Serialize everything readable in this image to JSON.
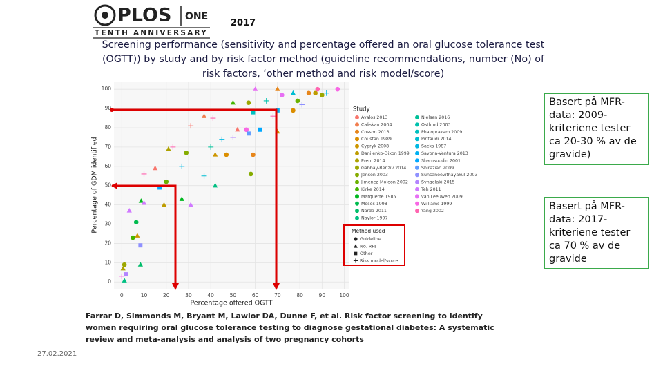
{
  "header": {
    "logo": "PLOS",
    "logo_sub": "ONE",
    "tagline": "TENTH ANNIVERSARY",
    "year": "2017",
    "title": "Screening performance (sensitivity and percentage offered an oral glucose tolerance test (OGTT)) by study and by risk factor method (guideline recommendations, number (No) of risk factors, ‘other method and risk model/score)"
  },
  "chart_data": {
    "type": "scatter",
    "xlabel": "Percentage offered OGTT",
    "ylabel": "Percentage of GDM identified",
    "xlim": [
      -3.5,
      102
    ],
    "ylim": [
      -3.5,
      104
    ],
    "xticks": [
      0,
      10,
      20,
      30,
      40,
      50,
      60,
      70,
      80,
      90,
      100
    ],
    "yticks": [
      0,
      10,
      20,
      30,
      40,
      50,
      60,
      70,
      80,
      90,
      100
    ],
    "grid": true,
    "study_title": "Study",
    "studies": [
      {
        "name": "Avalos 2013",
        "color": "#F8766D"
      },
      {
        "name": "Caliskan 2004",
        "color": "#F17E4F"
      },
      {
        "name": "Cosson 2013",
        "color": "#E7861B"
      },
      {
        "name": "Coustan 1989",
        "color": "#DB8E00"
      },
      {
        "name": "Cypryk 2008",
        "color": "#CD9600"
      },
      {
        "name": "Danilenko-Dixon 1999",
        "color": "#BE9C00"
      },
      {
        "name": "Erem 2014",
        "color": "#AEA200"
      },
      {
        "name": "Gabbay-Benziv 2014",
        "color": "#9CA700"
      },
      {
        "name": "Jensen 2003",
        "color": "#86AC00"
      },
      {
        "name": "Jimenez-Moleon 2002",
        "color": "#6BB100"
      },
      {
        "name": "Kirke 2014",
        "color": "#45B500"
      },
      {
        "name": "Marquette 1985",
        "color": "#00B81F"
      },
      {
        "name": "Moses 1998",
        "color": "#00BB4E"
      },
      {
        "name": "Narda 2011",
        "color": "#00BD6A"
      },
      {
        "name": "Naylor 1997",
        "color": "#00BF82"
      },
      {
        "name": "Nielsen 2016",
        "color": "#00C098"
      },
      {
        "name": "Ostlund 2003",
        "color": "#00C1AD"
      },
      {
        "name": "Phaloprakam 2009",
        "color": "#00C0C0"
      },
      {
        "name": "Pintaudi 2014",
        "color": "#00BDD2"
      },
      {
        "name": "Sacks 1987",
        "color": "#00B8E3"
      },
      {
        "name": "Savona-Ventura 2013",
        "color": "#00B1F2"
      },
      {
        "name": "Shamsuddin 2001",
        "color": "#00A8FF"
      },
      {
        "name": "Shirazian 2009",
        "color": "#619CFF"
      },
      {
        "name": "Sunsaneevithayakul 2003",
        "color": "#8F91FF"
      },
      {
        "name": "Syngelaki 2015",
        "color": "#B385FF"
      },
      {
        "name": "Teh 2011",
        "color": "#D079FF"
      },
      {
        "name": "van Leeuwen 2009",
        "color": "#E76FF4"
      },
      {
        "name": "Williams 1999",
        "color": "#F867E4"
      },
      {
        "name": "Yang 2002",
        "color": "#FF64B0"
      }
    ],
    "method_title": "Method used",
    "methods": [
      {
        "name": "Guideline",
        "shape": "circle"
      },
      {
        "name": "No. RFs",
        "shape": "triangle"
      },
      {
        "name": "Other",
        "shape": "square"
      },
      {
        "name": "Risk model/score",
        "shape": "plus"
      }
    ],
    "points": [
      {
        "study": 14,
        "method": 1,
        "x": 1.2,
        "y": 0.7
      },
      {
        "study": 27,
        "method": 3,
        "x": 0,
        "y": 3
      },
      {
        "study": 6,
        "method": 1,
        "x": 0.6,
        "y": 7
      },
      {
        "study": 7,
        "method": 0,
        "x": 1.2,
        "y": 9
      },
      {
        "study": 24,
        "method": 2,
        "x": 2,
        "y": 4
      },
      {
        "study": 10,
        "method": 0,
        "x": 5,
        "y": 23
      },
      {
        "study": 12,
        "method": 0,
        "x": 6.5,
        "y": 31
      },
      {
        "study": 25,
        "method": 1,
        "x": 3.4,
        "y": 37
      },
      {
        "study": 13,
        "method": 1,
        "x": 8.4,
        "y": 9
      },
      {
        "study": 4,
        "method": 1,
        "x": 7,
        "y": 24
      },
      {
        "study": 23,
        "method": 2,
        "x": 8.4,
        "y": 19
      },
      {
        "study": 11,
        "method": 1,
        "x": 8.7,
        "y": 42
      },
      {
        "study": 25,
        "method": 1,
        "x": 10,
        "y": 41
      },
      {
        "study": 28,
        "method": 3,
        "x": 10,
        "y": 56
      },
      {
        "study": 5,
        "method": 1,
        "x": 19,
        "y": 40
      },
      {
        "study": 9,
        "method": 0,
        "x": 20,
        "y": 52
      },
      {
        "study": 6,
        "method": 1,
        "x": 21,
        "y": 69
      },
      {
        "study": 0,
        "method": 1,
        "x": 15,
        "y": 59
      },
      {
        "study": 21,
        "method": 2,
        "x": 17,
        "y": 49
      },
      {
        "study": 11,
        "method": 1,
        "x": 27,
        "y": 43
      },
      {
        "study": 25,
        "method": 1,
        "x": 31,
        "y": 40
      },
      {
        "study": 19,
        "method": 3,
        "x": 27,
        "y": 60
      },
      {
        "study": 28,
        "method": 3,
        "x": 23,
        "y": 70
      },
      {
        "study": 8,
        "method": 0,
        "x": 29,
        "y": 67
      },
      {
        "study": 0,
        "method": 3,
        "x": 31,
        "y": 81
      },
      {
        "study": 1,
        "method": 1,
        "x": 37,
        "y": 86
      },
      {
        "study": 28,
        "method": 3,
        "x": 41,
        "y": 85
      },
      {
        "study": 15,
        "method": 3,
        "x": 40,
        "y": 70
      },
      {
        "study": 4,
        "method": 1,
        "x": 42,
        "y": 66
      },
      {
        "study": 14,
        "method": 1,
        "x": 42,
        "y": 50
      },
      {
        "study": 18,
        "method": 3,
        "x": 37,
        "y": 55
      },
      {
        "study": 19,
        "method": 3,
        "x": 45,
        "y": 74
      },
      {
        "study": 3,
        "method": 0,
        "x": 47,
        "y": 66
      },
      {
        "study": 24,
        "method": 3,
        "x": 50,
        "y": 75
      },
      {
        "study": 10,
        "method": 1,
        "x": 50,
        "y": 93
      },
      {
        "study": 0,
        "method": 1,
        "x": 52,
        "y": 79
      },
      {
        "study": 27,
        "method": 0,
        "x": 56,
        "y": 79
      },
      {
        "study": 22,
        "method": 2,
        "x": 57,
        "y": 77
      },
      {
        "study": 17,
        "method": 2,
        "x": 59,
        "y": 88
      },
      {
        "study": 21,
        "method": 2,
        "x": 62,
        "y": 79
      },
      {
        "study": 2,
        "method": 0,
        "x": 59,
        "y": 66
      },
      {
        "study": 8,
        "method": 0,
        "x": 58,
        "y": 56
      },
      {
        "study": 26,
        "method": 1,
        "x": 60,
        "y": 100
      },
      {
        "study": 7,
        "method": 0,
        "x": 57,
        "y": 93
      },
      {
        "study": 16,
        "method": 3,
        "x": 65,
        "y": 94
      },
      {
        "study": 28,
        "method": 3,
        "x": 68,
        "y": 86
      },
      {
        "study": 20,
        "method": 2,
        "x": 70,
        "y": 89
      },
      {
        "study": 4,
        "method": 1,
        "x": 70,
        "y": 78
      },
      {
        "study": 2,
        "method": 1,
        "x": 70,
        "y": 100
      },
      {
        "study": 18,
        "method": 1,
        "x": 77,
        "y": 98
      },
      {
        "study": 9,
        "method": 0,
        "x": 79,
        "y": 94
      },
      {
        "study": 3,
        "method": 0,
        "x": 77,
        "y": 89
      },
      {
        "study": 23,
        "method": 3,
        "x": 81,
        "y": 92
      },
      {
        "study": 28,
        "method": 0,
        "x": 88,
        "y": 100
      },
      {
        "study": 5,
        "method": 0,
        "x": 87,
        "y": 98
      },
      {
        "study": 7,
        "method": 0,
        "x": 90,
        "y": 97
      },
      {
        "study": 2,
        "method": 0,
        "x": 84,
        "y": 98
      },
      {
        "study": 27,
        "method": 0,
        "x": 97,
        "y": 100
      },
      {
        "study": 19,
        "method": 3,
        "x": 92,
        "y": 98
      },
      {
        "study": 26,
        "method": 0,
        "x": 72,
        "y": 97
      }
    ]
  },
  "callouts": [
    "Basert på MFR-data: 2009-kriteriene tester ca 20-30 % av de gravide)",
    "Basert på MFR-data: 2017-kriteriene tester ca 70 % av de gravide"
  ],
  "citation": "Farrar D, Simmonds M, Bryant M, Lawlor DA, Dunne F, et al. Risk factor screening to identify women requiring oral glucose tolerance testing to diagnose gestational diabetes: A systematic review and meta-analysis and analysis of two pregnancy cohorts",
  "footer": {
    "date": "27.02.2021"
  }
}
